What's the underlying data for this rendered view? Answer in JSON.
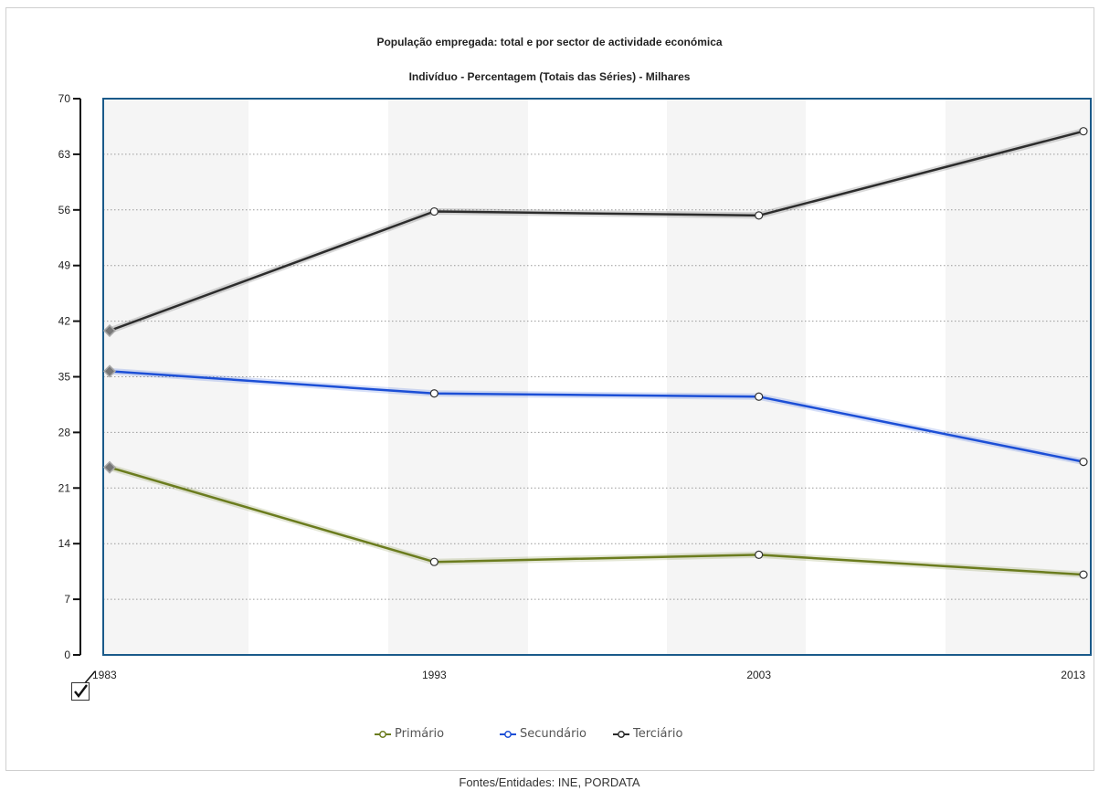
{
  "chart_data": {
    "type": "line",
    "title": "População empregada: total e por sector de actividade económica",
    "subtitle": "Indivíduo - Percentagem (Totais das Séries) - Milhares",
    "x": [
      "1983",
      "1993",
      "2003",
      "2013"
    ],
    "ylim": [
      0,
      70
    ],
    "yticks": [
      0,
      7,
      14,
      21,
      28,
      35,
      42,
      49,
      56,
      63,
      70
    ],
    "grid": true,
    "legend_position": "bottom",
    "series": [
      {
        "name": "Primário",
        "values": [
          23.6,
          11.7,
          12.6,
          10.1
        ],
        "color": "#6b7c1e"
      },
      {
        "name": "Secundário",
        "values": [
          35.7,
          32.9,
          32.5,
          24.3
        ],
        "color": "#1c4fd6"
      },
      {
        "name": "Terciário",
        "values": [
          40.8,
          55.8,
          55.3,
          65.9
        ],
        "color": "#2c2c2c"
      }
    ]
  },
  "footer": {
    "source": "Fontes/Entidades: INE, PORDATA"
  },
  "icons": {
    "checkbox": "checkbox-checked-icon"
  }
}
